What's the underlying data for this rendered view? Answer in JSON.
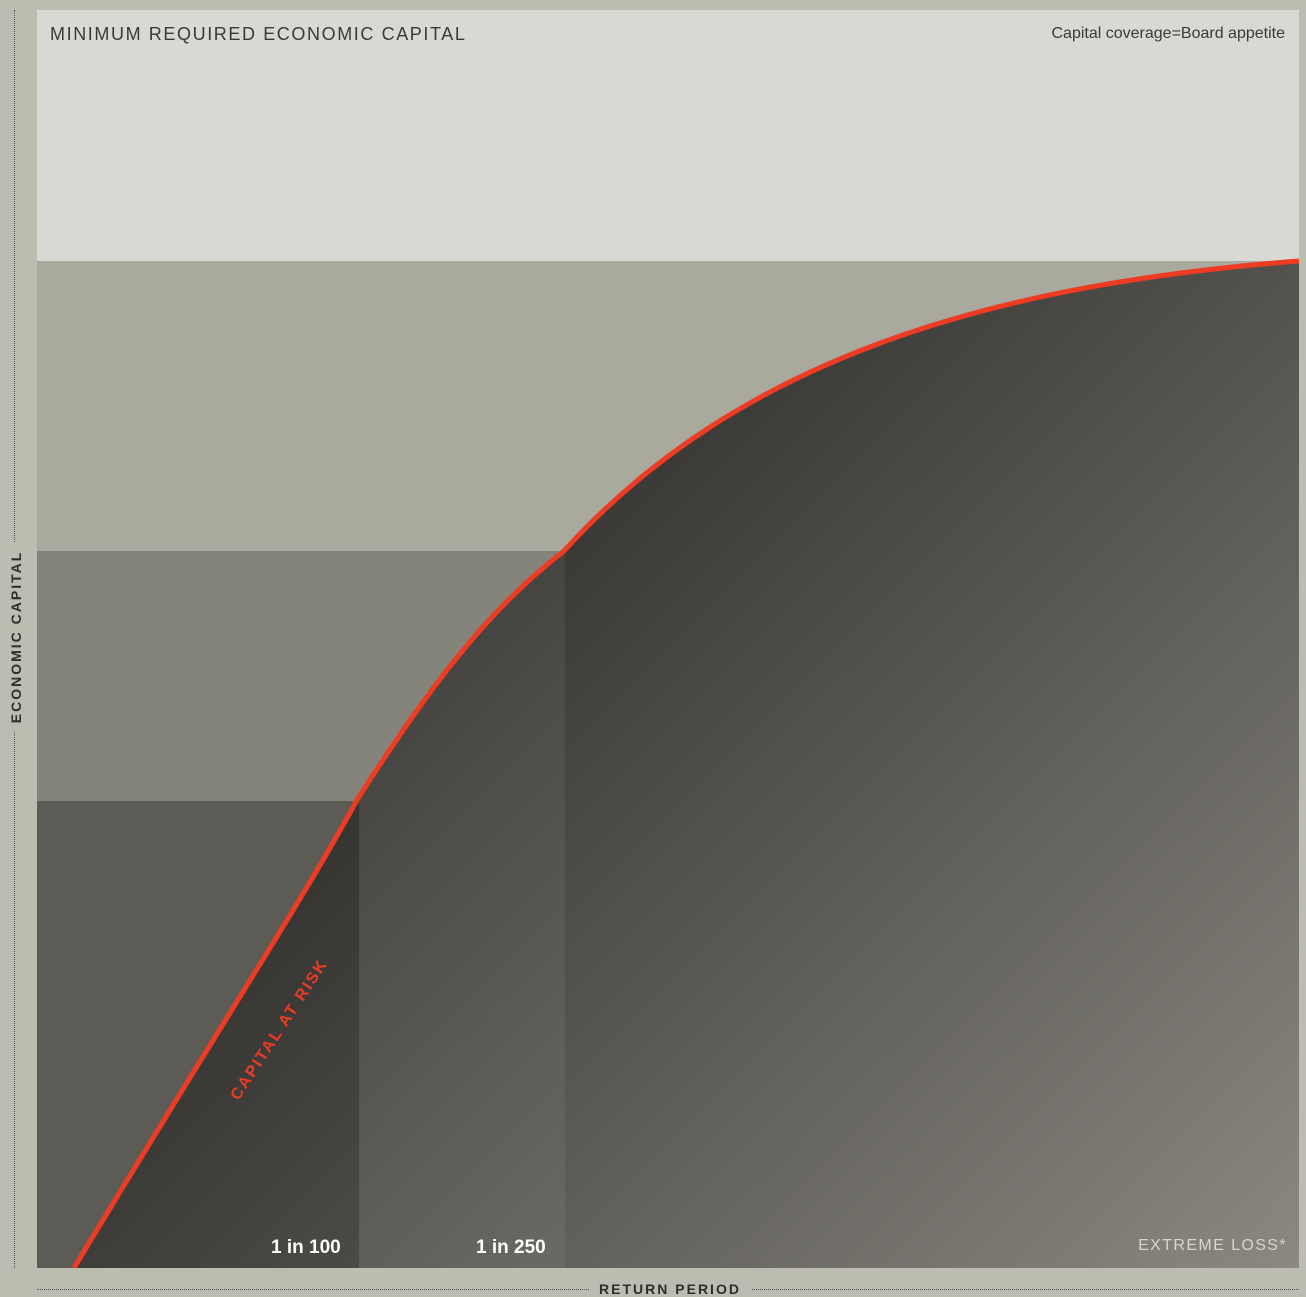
{
  "title": "MINIMUM REQUIRED ECONOMIC CAPITAL",
  "top_right_note": "Capital coverage=Board appetite",
  "y_axis_label": "ECONOMIC CAPITAL",
  "x_axis_label": "RETURN PERIOD",
  "curve_label": "CAPITAL AT RISK",
  "return_periods": [
    "1 in 100",
    "1 in 250"
  ],
  "extreme_label": "EXTREME LOSS*",
  "colors": {
    "background": "#bcbcb0",
    "top_band": "#d8d9d2",
    "upper_band": "#a9a99d",
    "middle_band": "#85847b",
    "lower_band": "#5d5b56",
    "curve_fill_dark": "#242220",
    "curve_fill_light": "#8a8880",
    "curve_line": "#ee3b23"
  }
}
